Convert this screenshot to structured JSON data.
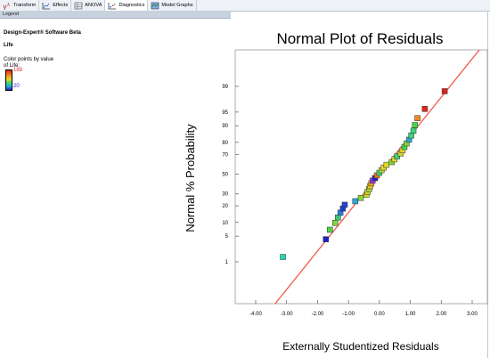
{
  "toolbar": {
    "items": [
      {
        "label": "Transform",
        "icon": "lambda-icon"
      },
      {
        "label": "Effects",
        "icon": "effects-icon"
      },
      {
        "label": "ANOVA",
        "icon": "anova-icon"
      },
      {
        "label": "Diagnostics",
        "icon": "diagnostics-icon"
      },
      {
        "label": "Model Graphs",
        "icon": "model-graphs-icon"
      }
    ]
  },
  "legend": {
    "header": "Legend",
    "software": "Design-Expert® Software Beta",
    "response": "Life",
    "color_points_label": "Color points by value of Life:",
    "max_value": "188",
    "min_value": "20",
    "colors": {
      "high": "#e52b2b",
      "low": "#2323d9"
    }
  },
  "chart_data": {
    "type": "scatter",
    "title": "Normal Plot of Residuals",
    "xlabel": "Externally Studentized Residuals",
    "ylabel": "Normal % Probability",
    "xlim": [
      -4.5,
      3.5
    ],
    "x_ticks": [
      "-4.00",
      "-3.00",
      "-2.00",
      "-1.00",
      "0.00",
      "1.00",
      "2.00",
      "3.00"
    ],
    "y_ticks": [
      "1",
      "5",
      "10",
      "20",
      "30",
      "50",
      "70",
      "80",
      "90",
      "95",
      "99"
    ],
    "y_scale": "normal-probability",
    "reference_line_color": "#f25a50",
    "points": [
      {
        "x": -3.12,
        "y": 1.4,
        "c": "#22d6b0"
      },
      {
        "x": -1.73,
        "y": 4.2,
        "c": "#1c23c9"
      },
      {
        "x": -1.6,
        "y": 7.0,
        "c": "#49d64a"
      },
      {
        "x": -1.43,
        "y": 9.8,
        "c": "#7fd63a"
      },
      {
        "x": -1.34,
        "y": 12.5,
        "c": "#3cc47a"
      },
      {
        "x": -1.26,
        "y": 15.3,
        "c": "#2a7ed8"
      },
      {
        "x": -1.18,
        "y": 18.1,
        "c": "#1c3dd0"
      },
      {
        "x": -1.12,
        "y": 20.8,
        "c": "#2344d0"
      },
      {
        "x": -0.78,
        "y": 23.6,
        "c": "#2aa6d8"
      },
      {
        "x": -0.6,
        "y": 26.4,
        "c": "#7fd63a"
      },
      {
        "x": -0.42,
        "y": 29.2,
        "c": "#d8d82a"
      },
      {
        "x": -0.38,
        "y": 31.9,
        "c": "#c7d62a"
      },
      {
        "x": -0.33,
        "y": 34.7,
        "c": "#a7d63a"
      },
      {
        "x": -0.3,
        "y": 37.5,
        "c": "#e6c82a"
      },
      {
        "x": -0.26,
        "y": 40.3,
        "c": "#f0a81e"
      },
      {
        "x": -0.22,
        "y": 43.1,
        "c": "#9b3adb"
      },
      {
        "x": -0.14,
        "y": 45.8,
        "c": "#1c23c9"
      },
      {
        "x": -0.08,
        "y": 48.6,
        "c": "#e07a1e"
      },
      {
        "x": 0.0,
        "y": 51.4,
        "c": "#3fd27a"
      },
      {
        "x": 0.07,
        "y": 54.2,
        "c": "#b2d63a"
      },
      {
        "x": 0.14,
        "y": 56.9,
        "c": "#e6d62a"
      },
      {
        "x": 0.23,
        "y": 59.7,
        "c": "#d8d82a"
      },
      {
        "x": 0.4,
        "y": 62.5,
        "c": "#7fd63a"
      },
      {
        "x": 0.49,
        "y": 65.3,
        "c": "#e6d62a"
      },
      {
        "x": 0.57,
        "y": 68.1,
        "c": "#3fd27a"
      },
      {
        "x": 0.69,
        "y": 70.8,
        "c": "#c7d62a"
      },
      {
        "x": 0.75,
        "y": 73.6,
        "c": "#e6d62a"
      },
      {
        "x": 0.81,
        "y": 76.4,
        "c": "#49d64a"
      },
      {
        "x": 0.88,
        "y": 79.2,
        "c": "#7fd63a"
      },
      {
        "x": 0.96,
        "y": 81.9,
        "c": "#2aa6d8"
      },
      {
        "x": 1.03,
        "y": 84.7,
        "c": "#3fd27a"
      },
      {
        "x": 1.1,
        "y": 87.5,
        "c": "#3fd27a"
      },
      {
        "x": 1.15,
        "y": 90.3,
        "c": "#49d64a"
      },
      {
        "x": 1.23,
        "y": 93.1,
        "c": "#f08a1e"
      },
      {
        "x": 1.47,
        "y": 95.8,
        "c": "#e0261a"
      },
      {
        "x": 2.11,
        "y": 98.6,
        "c": "#d8261a"
      }
    ]
  }
}
